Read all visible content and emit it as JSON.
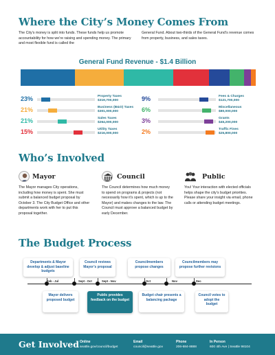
{
  "page_title": "Where the City’s Money Comes From",
  "intro_left": "The City’s money is split into funds. These funds help us promote accountability for how we’re raising and spending money. The primary and most flexible fund is called the",
  "intro_right": "General Fund. About two-thirds of the General Fund’s revenue comes from property, business, and sales taxes.",
  "revenue": {
    "title": "General Fund Revenue - $1.4 Billion",
    "segments": [
      {
        "name": "Property Taxes",
        "share": 23,
        "color": "#1f6fa6"
      },
      {
        "name": "Business (B&O) Taxes",
        "share": 21,
        "color": "#f5ad3c"
      },
      {
        "name": "Sales Taxes",
        "share": 21,
        "color": "#2fb9a6"
      },
      {
        "name": "Utility Taxes",
        "share": 15,
        "color": "#e2313b"
      },
      {
        "name": "Fees & Charges",
        "share": 9,
        "color": "#254a9a"
      },
      {
        "name": "Miscellaneous",
        "share": 6,
        "color": "#43b36b"
      },
      {
        "name": "Grants",
        "share": 3,
        "color": "#7d3f98"
      },
      {
        "name": "Traffic Fines",
        "share": 2,
        "color": "#f47b20"
      }
    ],
    "left_rows": [
      {
        "pct": "23%",
        "label": "Property Taxes",
        "amount": "$319,700,000",
        "color": "#1f6fa6",
        "level": 0.08
      },
      {
        "pct": "21%",
        "label": "Business (B&O) Taxes",
        "amount": "$301,000,000",
        "color": "#f5ad3c",
        "level": 0.22
      },
      {
        "pct": "21%",
        "label": "Sales Taxes",
        "amount": "$264,000,000",
        "color": "#2fb9a6",
        "level": 0.42
      },
      {
        "pct": "15%",
        "label": "Utility Taxes",
        "amount": "$216,000,000",
        "color": "#e2313b",
        "level": 0.74
      }
    ],
    "right_rows": [
      {
        "pct": "9%",
        "label": "Fees & Charges",
        "amount": "$121,700,000",
        "color": "#254a9a",
        "level": 0.84
      },
      {
        "pct": "6%",
        "label": "Miscellaneous",
        "amount": "$80,000,000",
        "color": "#43b36b",
        "level": 0.9
      },
      {
        "pct": "3%",
        "label": "Grants",
        "amount": "$45,200,000",
        "color": "#7d3f98",
        "level": 0.94
      },
      {
        "pct": "2%",
        "label": "Traffic Fines",
        "amount": "$25,800,000",
        "color": "#f47b20",
        "level": 0.97
      }
    ]
  },
  "who": {
    "title": "Who’s Involved",
    "mayor": {
      "name": "Mayor",
      "text": "The Mayor manages City operations, including how money is spent. She must submit a balanced budget proposal by October 3. The City Budget Office and other departments work with her to put this proposal together."
    },
    "council": {
      "name": "Council",
      "text": "The Council determines how much money to spend on programs & projects (not necessarily how it’s spent, which is up to the Mayor) and makes changes to the law. The Council must approve a balanced budget by early December."
    },
    "public": {
      "name": "Public",
      "text": "You! Your interaction with elected officials helps shape the city’s budget priorities. Please share your insight via email, phone calls or attending budget meetings."
    }
  },
  "process": {
    "title": "The Budget Process",
    "top_steps": [
      "Departments & Mayor develop & adjust baseline budgets",
      "Council reviews Mayor’s proposal",
      "Councilmembers propose changes",
      "Councilmembers may propose further revisions"
    ],
    "bottom_steps": [
      "Mayor delivers proposed budget",
      "Public provides feedback on the budget",
      "Budget chair presents a balancing package",
      "Council votes to adopt the budget"
    ],
    "dates": [
      "Feb - Jul",
      "Sept - Oct",
      "Sept - Nov",
      "Oct",
      "Nov",
      "Dec"
    ]
  },
  "footer": {
    "title": "Get Involved",
    "columns": [
      {
        "head": "Online",
        "value": "seattle.gov/council/budget"
      },
      {
        "head": "Email",
        "value": "council@seattle.gov"
      },
      {
        "head": "Phone",
        "value": "206-684-8888"
      },
      {
        "head": "In Person",
        "value": "600 4th Ave | Seattle 98104"
      }
    ]
  },
  "colors": {
    "teal": "#1f7a8c",
    "link": "#1f6f86",
    "highlight": "#1f7a8c"
  }
}
